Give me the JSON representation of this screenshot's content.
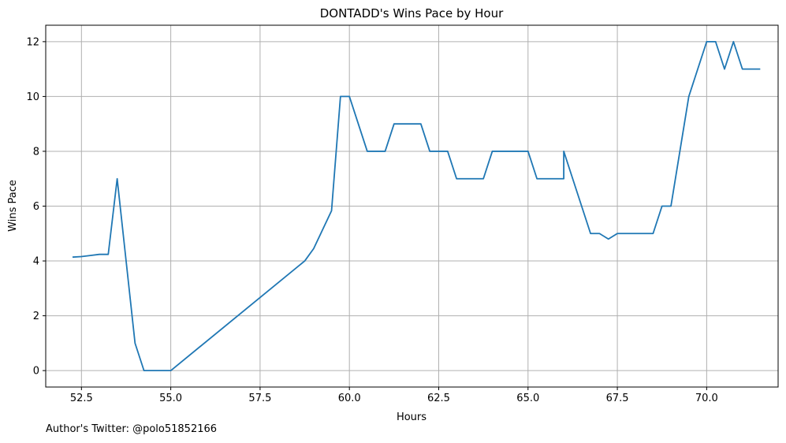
{
  "chart_data": {
    "type": "line",
    "title": "DONTADD's Wins Pace by Hour",
    "xlabel": "Hours",
    "ylabel": "Wins Pace",
    "xlim": [
      51.5,
      72.0
    ],
    "ylim": [
      -0.6,
      12.6
    ],
    "grid": true,
    "x_ticks": [
      52.5,
      55.0,
      57.5,
      60.0,
      62.5,
      65.0,
      67.5,
      70.0
    ],
    "x_tick_labels": [
      "52.5",
      "55.0",
      "57.5",
      "60.0",
      "62.5",
      "65.0",
      "67.5",
      "70.0"
    ],
    "y_ticks": [
      0,
      2,
      4,
      6,
      8,
      10,
      12
    ],
    "y_tick_labels": [
      "0",
      "2",
      "4",
      "6",
      "8",
      "10",
      "12"
    ],
    "series": [
      {
        "color": "#1f77b4",
        "x": [
          52.25,
          52.5,
          52.75,
          53.0,
          53.25,
          53.5,
          53.75,
          54.0,
          54.25,
          54.5,
          54.75,
          55.0,
          58.75,
          59.0,
          59.25,
          59.5,
          59.75,
          60.0,
          60.25,
          60.5,
          60.75,
          61.0,
          61.25,
          61.5,
          61.75,
          62.0,
          62.25,
          62.5,
          62.75,
          63.0,
          63.25,
          63.5,
          63.75,
          64.0,
          64.25,
          64.5,
          64.75,
          65.0,
          65.25,
          65.5,
          65.75,
          66.0,
          66.0,
          66.25,
          66.5,
          66.75,
          67.0,
          67.25,
          67.5,
          67.75,
          68.0,
          68.25,
          68.5,
          68.75,
          69.0,
          69.25,
          69.5,
          69.75,
          70.0,
          70.25,
          70.5,
          70.75,
          71.0,
          71.25,
          71.5
        ],
        "y": [
          4.14,
          4.16,
          4.2,
          4.24,
          4.24,
          7.0,
          4.0,
          1.0,
          0.0,
          0.0,
          0.0,
          0.0,
          4.0,
          4.45,
          5.14,
          5.83,
          10.0,
          10.0,
          9.0,
          8.0,
          8.0,
          8.0,
          9.0,
          9.0,
          9.0,
          9.0,
          8.0,
          8.0,
          8.0,
          7.0,
          7.0,
          7.0,
          7.0,
          8.0,
          8.0,
          8.0,
          8.0,
          8.0,
          7.0,
          7.0,
          7.0,
          7.0,
          8.0,
          7.0,
          6.0,
          5.0,
          5.0,
          4.8,
          5.0,
          5.0,
          5.0,
          5.0,
          5.0,
          6.0,
          6.0,
          8.0,
          10.0,
          11.0,
          12.0,
          12.0,
          11.0,
          12.0,
          11.0,
          11.0,
          11.0
        ]
      }
    ]
  },
  "footer": {
    "credit": "Author's Twitter: @polo51852166"
  }
}
